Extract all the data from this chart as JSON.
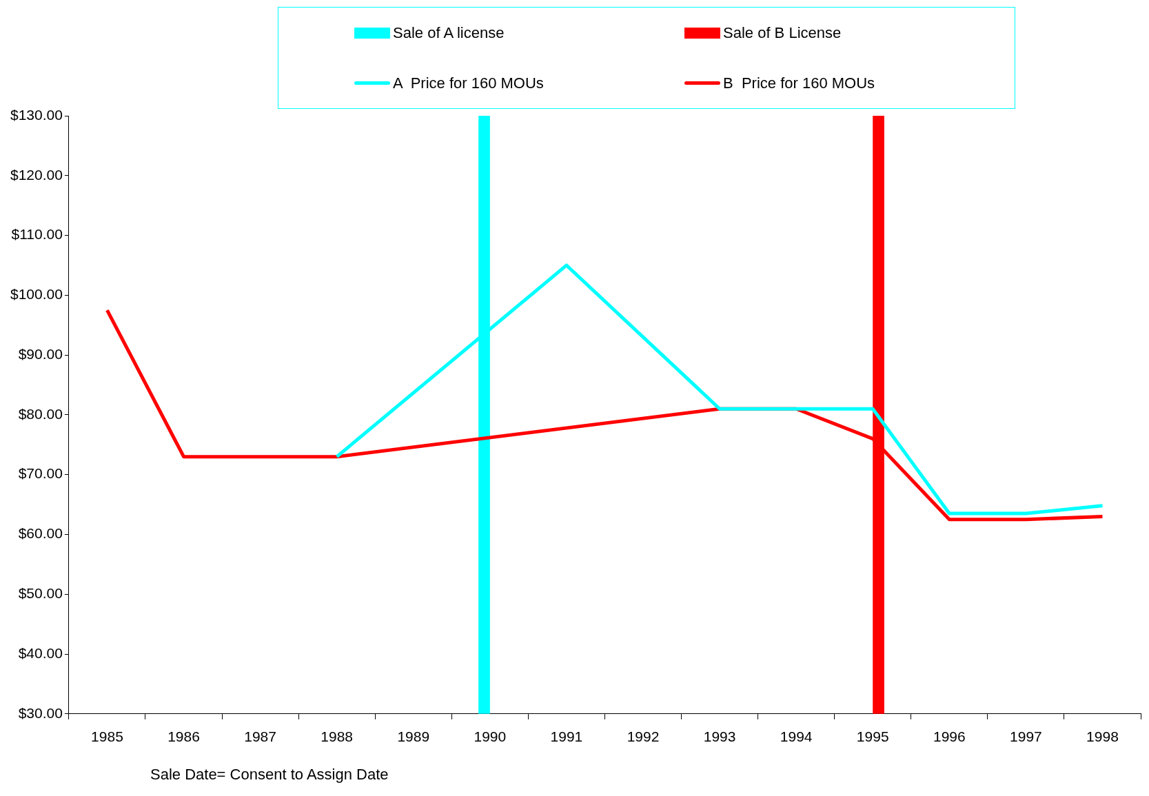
{
  "chart_data": {
    "type": "line",
    "categories": [
      "1985",
      "1986",
      "1987",
      "1988",
      "1989",
      "1990",
      "1991",
      "1992",
      "1993",
      "1994",
      "1995",
      "1996",
      "1997",
      "1998"
    ],
    "series": [
      {
        "name": "Sale of A license",
        "type": "bar",
        "color": "#00ffff",
        "values": [
          null,
          null,
          null,
          null,
          null,
          130,
          null,
          null,
          null,
          null,
          null,
          null,
          null,
          null
        ]
      },
      {
        "name": "Sale of B License",
        "type": "bar",
        "color": "#ff0000",
        "values": [
          null,
          null,
          null,
          null,
          null,
          null,
          null,
          null,
          null,
          null,
          130,
          null,
          null,
          null
        ]
      },
      {
        "name": "A  Price for 160 MOUs",
        "color": "#00ffff",
        "values": [
          null,
          null,
          null,
          73,
          null,
          null,
          105,
          null,
          81,
          81,
          81,
          63.5,
          63.5,
          64.8
        ]
      },
      {
        "name": "B  Price for 160 MOUs",
        "color": "#ff0000",
        "values": [
          97.5,
          73,
          73,
          73,
          null,
          null,
          null,
          null,
          81,
          81,
          76,
          62.5,
          62.5,
          63
        ]
      }
    ],
    "ylim": [
      30,
      130
    ],
    "yticks": [
      {
        "value": 30,
        "label": "$30.00"
      },
      {
        "value": 40,
        "label": "$40.00"
      },
      {
        "value": 50,
        "label": "$50.00"
      },
      {
        "value": 60,
        "label": "$60.00"
      },
      {
        "value": 70,
        "label": "$70.00"
      },
      {
        "value": 80,
        "label": "$80.00"
      },
      {
        "value": 90,
        "label": "$90.00"
      },
      {
        "value": 100,
        "label": "$100.00"
      },
      {
        "value": 110,
        "label": "$110.00"
      },
      {
        "value": 120,
        "label": "$120.00"
      },
      {
        "value": 130,
        "label": "$130.00"
      }
    ],
    "grid": false,
    "legend": "top",
    "marker": "none",
    "line_style": "solid",
    "annotations": [
      "Sale Date= Consent to Assign Date"
    ]
  }
}
